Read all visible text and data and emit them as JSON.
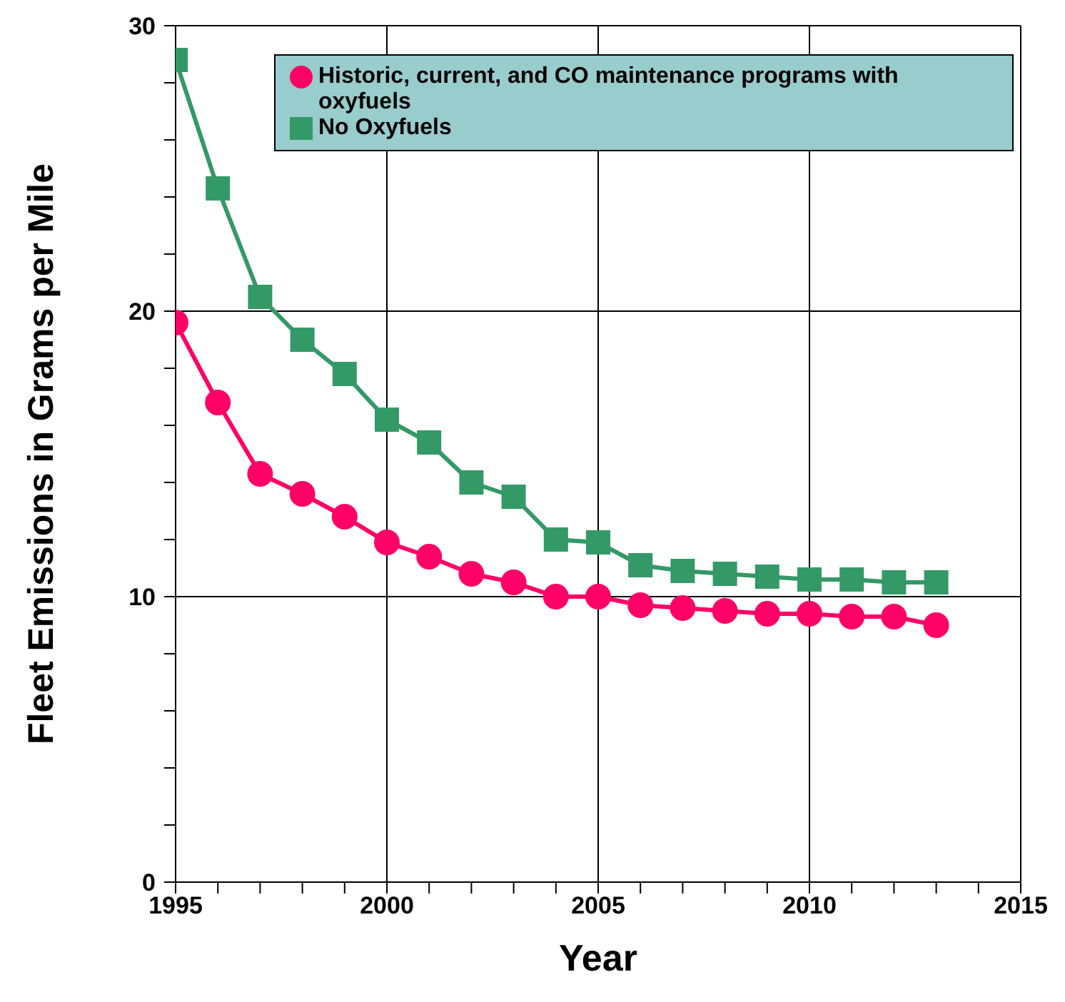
{
  "chart_data": {
    "type": "line",
    "xlabel": "Year",
    "ylabel": "Fleet Emissions in Grams per Mile",
    "x": [
      1995,
      1996,
      1997,
      1998,
      1999,
      2000,
      2001,
      2002,
      2003,
      2004,
      2005,
      2006,
      2007,
      2008,
      2009,
      2010,
      2011,
      2012,
      2013
    ],
    "series": [
      {
        "name": "Historic, current, and CO maintenance programs with oxyfuels",
        "color": "#ff0066",
        "marker": "circle",
        "values": [
          19.6,
          16.8,
          14.3,
          13.6,
          12.8,
          11.9,
          11.4,
          10.8,
          10.5,
          10.0,
          10.0,
          9.7,
          9.6,
          9.5,
          9.4,
          9.4,
          9.3,
          9.3,
          9.0
        ]
      },
      {
        "name": "No Oxyfuels",
        "color": "#339966",
        "marker": "square",
        "values": [
          28.8,
          24.3,
          20.5,
          19.0,
          17.8,
          16.2,
          15.4,
          14.0,
          13.5,
          12.0,
          11.9,
          11.1,
          10.9,
          10.8,
          10.7,
          10.6,
          10.6,
          10.5,
          10.5
        ]
      }
    ],
    "xlim": [
      1995,
      2015
    ],
    "xticks": [
      1995,
      {
        "value": 1996,
        "label": null
      },
      {
        "value": 1997,
        "label": null
      },
      {
        "value": 1998,
        "label": null
      },
      {
        "value": 1999,
        "label": null
      },
      2000,
      {
        "value": 2001,
        "label": null
      },
      {
        "value": 2002,
        "label": null
      },
      {
        "value": 2003,
        "label": null
      },
      {
        "value": 2004,
        "label": null
      },
      2005,
      {
        "value": 2006,
        "label": null
      },
      {
        "value": 2007,
        "label": null
      },
      {
        "value": 2008,
        "label": null
      },
      {
        "value": 2009,
        "label": null
      },
      2010,
      {
        "value": 2011,
        "label": null
      },
      {
        "value": 2012,
        "label": null
      },
      {
        "value": 2013,
        "label": null
      },
      {
        "value": 2014,
        "label": null
      },
      2015
    ],
    "ylim": [
      0,
      30
    ],
    "yticks": [
      0,
      {
        "value": 2,
        "label": null
      },
      {
        "value": 4,
        "label": null
      },
      {
        "value": 6,
        "label": null
      },
      {
        "value": 8,
        "label": null
      },
      10,
      {
        "value": 12,
        "label": null
      },
      {
        "value": 14,
        "label": null
      },
      {
        "value": 16,
        "label": null
      },
      {
        "value": 18,
        "label": null
      },
      20,
      {
        "value": 22,
        "label": null
      },
      {
        "value": 24,
        "label": null
      },
      {
        "value": 26,
        "label": null
      },
      {
        "value": 28,
        "label": null
      },
      30
    ],
    "grid": true,
    "legend": "top right",
    "line_style": "solid"
  }
}
